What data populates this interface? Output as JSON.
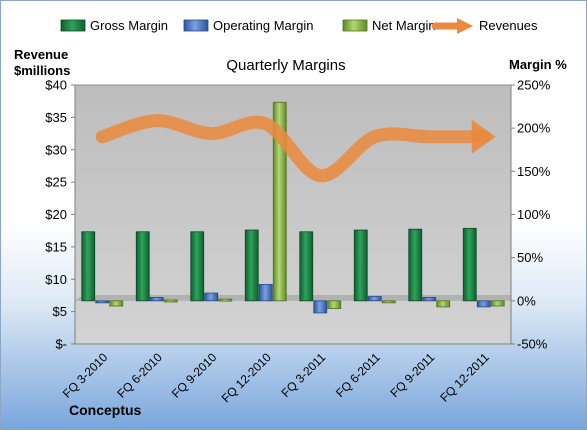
{
  "chart_data": {
    "type": "bar",
    "title": "Quarterly Margins",
    "company": "Conceptus",
    "y_left_label": [
      "Revenue",
      "$millions"
    ],
    "y_right_label": "Margin %",
    "y_left_range": [
      0,
      40
    ],
    "y_left_ticks": [
      "$-",
      "$5",
      "$10",
      "$15",
      "$20",
      "$25",
      "$30",
      "$35",
      "$40"
    ],
    "y_right_range": [
      -50,
      250
    ],
    "y_right_ticks": [
      "-50%",
      "0%",
      "50%",
      "100%",
      "150%",
      "200%",
      "250%"
    ],
    "grid": false,
    "legend_position": "top",
    "categories": [
      "FQ 3-2010",
      "FQ 6-2010",
      "FQ 9-2010",
      "FQ 12-2010",
      "FQ 3-2011",
      "FQ 6-2011",
      "FQ 9-2011",
      "FQ 12-2011"
    ],
    "series": [
      {
        "name": "Gross Margin",
        "kind": "bar",
        "axis": "right",
        "color": "#1e8a4a",
        "values": [
          80,
          80,
          80,
          82,
          80,
          82,
          83,
          84
        ]
      },
      {
        "name": "Operating Margin",
        "kind": "bar",
        "axis": "right",
        "color": "#4a78c2",
        "values": [
          0,
          4,
          9,
          19,
          -14,
          5,
          4,
          -7
        ]
      },
      {
        "name": "Net Margin",
        "kind": "bar",
        "axis": "right",
        "color": "#8fba4a",
        "values": [
          -6,
          1,
          2,
          230,
          -9,
          0,
          -7,
          -6
        ]
      },
      {
        "name": "Revenues",
        "kind": "line",
        "axis": "left",
        "color": "#e98a3f",
        "values": [
          32,
          34.5,
          32.5,
          34,
          26,
          32,
          32,
          32
        ]
      }
    ]
  }
}
